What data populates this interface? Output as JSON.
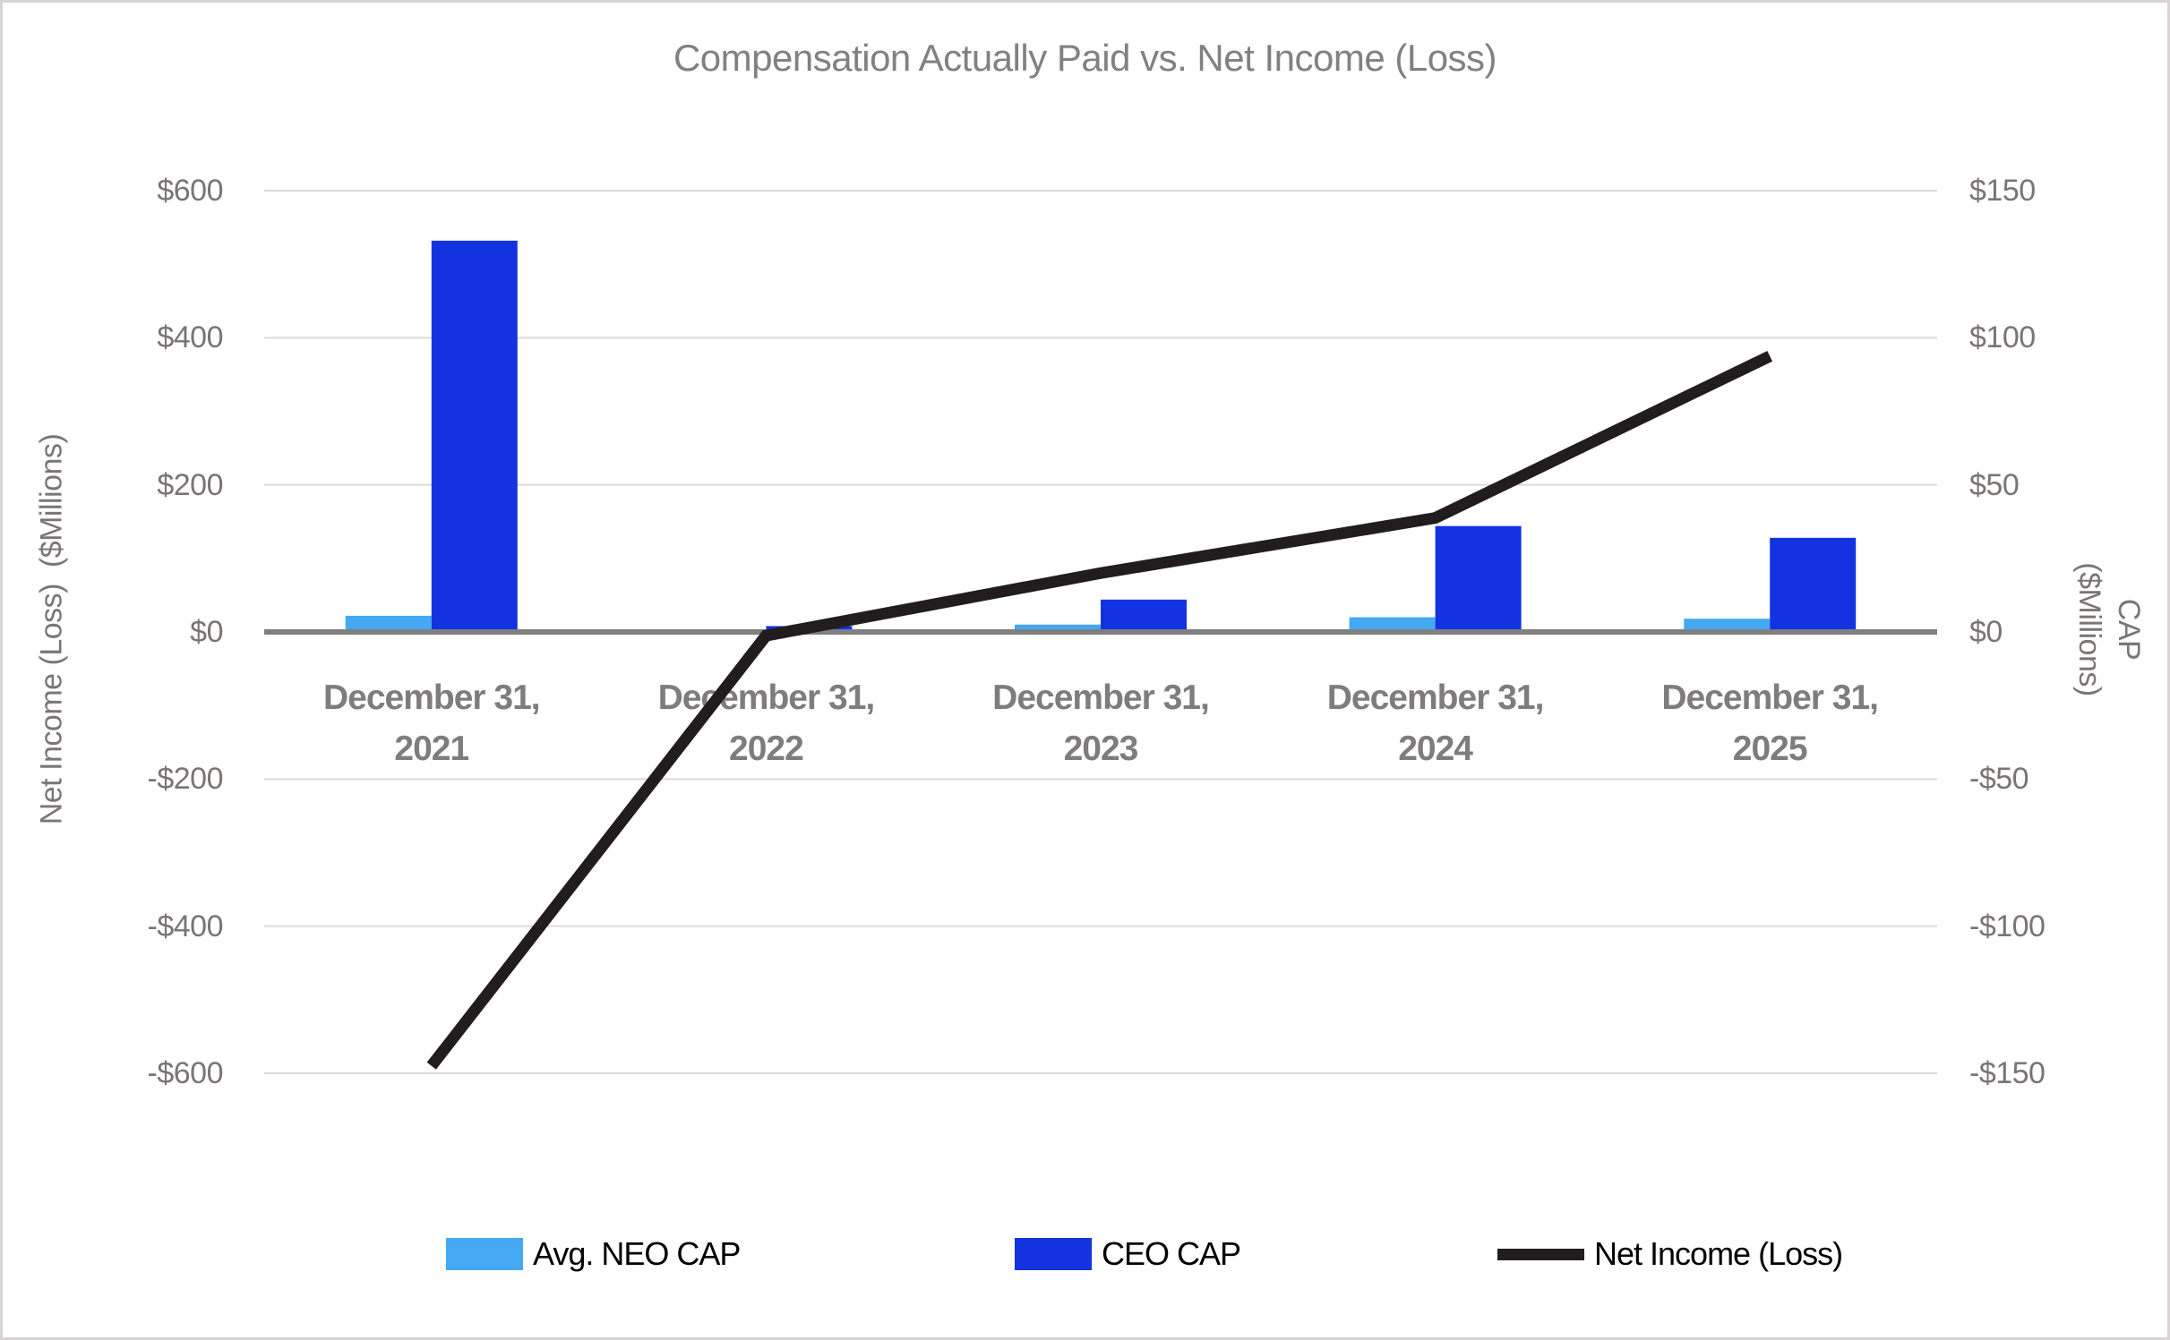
{
  "title": "Compensation Actually Paid vs. Net Income (Loss)",
  "chart_data": {
    "type": "bar",
    "subtype": "combo-bar-line-dual-axis",
    "title": "Compensation Actually Paid vs. Net Income (Loss)",
    "categories": [
      "December 31, 2021",
      "December 31, 2022",
      "December 31, 2023",
      "December 31, 2024",
      "December 31, 2025"
    ],
    "series": [
      {
        "name": "Avg. NEO CAP",
        "type": "bar",
        "axis": "right",
        "color": "#44a8f2",
        "values": [
          5.5,
          0,
          2.5,
          5,
          4.5
        ]
      },
      {
        "name": "CEO CAP",
        "type": "bar",
        "axis": "right",
        "color": "#1333e0",
        "values": [
          133,
          2,
          11,
          36,
          32
        ]
      },
      {
        "name": "Net Income (Loss)",
        "type": "line",
        "axis": "left",
        "color": "#211d1e",
        "values": [
          -590,
          -5,
          80,
          155,
          375
        ]
      }
    ],
    "left_axis": {
      "title": "Net Income (Loss)  ($Millions)",
      "min": -600,
      "max": 600,
      "tick_step": 200,
      "ticks": [
        "$600",
        "$400",
        "$200",
        "$0",
        "-$200",
        "-$400",
        "-$600"
      ]
    },
    "right_axis": {
      "title": "CAP ($Millions)",
      "title_lines": [
        "CAP",
        "($Millions)"
      ],
      "min": -150,
      "max": 150,
      "tick_step": 50,
      "ticks": [
        "$150",
        "$100",
        "$50",
        "$0",
        "-$50",
        "-$100",
        "-$150"
      ]
    },
    "grid": true,
    "gridline_color": "#dbd9d9",
    "zero_axis_color": "#7f7f7f",
    "legend_position": "bottom",
    "units": "$Millions"
  }
}
